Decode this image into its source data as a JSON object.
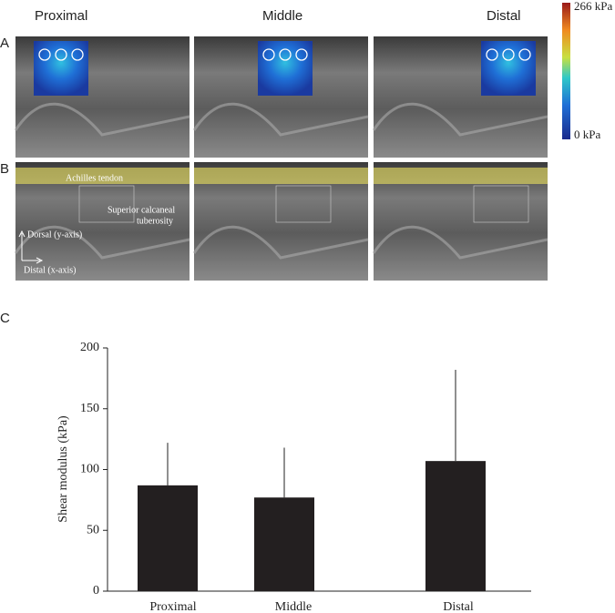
{
  "figure": {
    "columns": [
      "Proximal",
      "Middle",
      "Distal"
    ],
    "panel_labels": [
      "A",
      "B",
      "C"
    ],
    "colorbar": {
      "max_label": "266 kPa",
      "min_label": "0 kPa"
    },
    "annotations": {
      "tendon": "Achilles tendon",
      "tuberosity": [
        "Superior calcaneal",
        "tuberosity"
      ],
      "dorsal": "Dorsal (y-axis)",
      "distal": "Distal (x-axis)"
    }
  },
  "chart_data": {
    "type": "bar",
    "ylabel": "Shear modulus (kPa)",
    "categories": [
      "Proximal",
      "Middle",
      "Distal"
    ],
    "values": [
      87,
      77,
      107
    ],
    "errors": [
      35,
      41,
      75
    ],
    "color": "#231f20",
    "ylim": [
      0,
      200
    ],
    "yticks": [
      0,
      50,
      100,
      150,
      200
    ]
  }
}
